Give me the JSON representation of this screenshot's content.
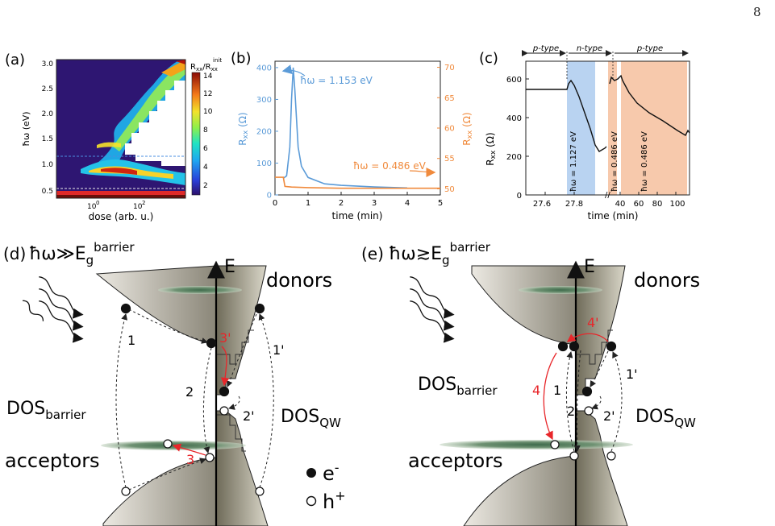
{
  "page_number": "8",
  "panel_labels": {
    "a": "(a)",
    "b": "(b)",
    "c": "(c)",
    "d": "(d)",
    "e": "(e)"
  },
  "colors": {
    "blue": "#5b9bd8",
    "orange": "#f08a3c",
    "blue_band": "#b9d3f1",
    "orange_band": "#f7c9ac",
    "red": "#e8262a"
  },
  "chart_data": [
    {
      "type": "heatmap",
      "panel": "(a)",
      "xlabel": "dose (arb. u.)",
      "ylabel": "ħω (eV)",
      "xscale": "log",
      "xticks": [
        "10",
        "0",
        "10",
        "2"
      ],
      "yticks": [
        "0.5",
        "1.0",
        "1.5",
        "2.0",
        "2.5",
        "3.0"
      ],
      "ylim": [
        0.35,
        3.1
      ],
      "colorbar_label": "Rxx/Rxx init",
      "colorbar_label_main": "R",
      "colorbar_label_sub": "xx",
      "colorbar_label_sep": "/R",
      "colorbar_label_sup": "init",
      "colorbar_ticks": [
        "2",
        "4",
        "6",
        "8",
        "10",
        "12",
        "14"
      ],
      "dashed_lines_eV": [
        1.153,
        0.486
      ]
    },
    {
      "type": "line",
      "panel": "(b)",
      "xlabel": "time (min)",
      "xlim": [
        0,
        5
      ],
      "xticks": [
        "0",
        "1",
        "2",
        "3",
        "4",
        "5"
      ],
      "ylabel_left": "Rxx (Ω)",
      "ylabel_right": "Rxx (Ω)",
      "ylim_left": [
        0,
        420
      ],
      "yticks_left": [
        "0",
        "100",
        "200",
        "300",
        "400"
      ],
      "ylim_right": [
        49,
        71
      ],
      "yticks_right": [
        "50",
        "55",
        "60",
        "65",
        "70"
      ],
      "series": [
        {
          "name": "ħω = 1.153 eV",
          "axis": "left",
          "x": [
            0.25,
            0.35,
            0.45,
            0.5,
            0.55,
            0.6,
            0.7,
            0.8,
            1.0,
            1.5,
            2.0,
            3.0,
            4.0
          ],
          "y": [
            52,
            60,
            150,
            300,
            400,
            330,
            150,
            90,
            55,
            35,
            30,
            25,
            22
          ]
        },
        {
          "name": "ħω = 0.486 eV",
          "axis": "right",
          "x": [
            0,
            0.25,
            0.3,
            0.5,
            1.0,
            2.0,
            3.0,
            4.0,
            5.0
          ],
          "y": [
            51.9,
            51.9,
            50.4,
            50.3,
            50.2,
            50.1,
            50.1,
            50.1,
            50.1
          ]
        }
      ]
    },
    {
      "type": "line",
      "panel": "(c)",
      "xlabel": "time (min)",
      "xticks": [
        "27.6",
        "27.8",
        "40",
        "60",
        "80",
        "100"
      ],
      "ylabel": "Rxx (Ω)",
      "ylim": [
        0,
        690
      ],
      "yticks": [
        "0",
        "200",
        "400",
        "600"
      ],
      "regions": [
        "p-type",
        "n-type",
        "p-type"
      ],
      "band_labels": [
        "ħω = 1.127 eV",
        "ħω = 0.486 eV",
        "ħω = 0.486 eV"
      ],
      "series": [
        {
          "name": "",
          "y_path": [
            550,
            550,
            550,
            600,
            560,
            420,
            300,
            225,
            240,
            560,
            625,
            610,
            620,
            560,
            430,
            360,
            300,
            320
          ]
        }
      ]
    }
  ],
  "texts": {
    "b_label_blue": "ħω = 1.153 eV",
    "b_label_orange": "ħω = 0.486 eV",
    "c_ptype1": "p-type",
    "c_ntype": "n-type",
    "c_ptype2": "p-type",
    "c_band1": "ħω = 1.127 eV",
    "c_band2": "ħω = 0.486 eV",
    "c_band3": "ħω = 0.486 eV",
    "d_title_pre": "ħω≫E",
    "e_title_pre": "ħω≳E",
    "title_sub": "g",
    "title_sup": "barrier",
    "axis_E": "E",
    "donors": "donors",
    "acceptors": "acceptors",
    "dos_main": "DOS",
    "dos_barrier_sub": "barrier",
    "dos_qw_sub": "QW",
    "legend_e": "e",
    "legend_e_sup": "-",
    "legend_h": "h",
    "legend_h_sup": "+",
    "d_n1": "1",
    "d_n1p": "1'",
    "d_n2": "2",
    "d_n2p": "2'",
    "d_n3": "3",
    "d_n3p": "3'",
    "e_n1": "1",
    "e_n1p": "1'",
    "e_n2": "2",
    "e_n2p": "2'",
    "e_n4": "4",
    "e_n4p": "4'",
    "ax_Rxx_main": "R",
    "ax_Rxx_sub": "xx",
    "ax_Rxx_unit": " (Ω)"
  }
}
